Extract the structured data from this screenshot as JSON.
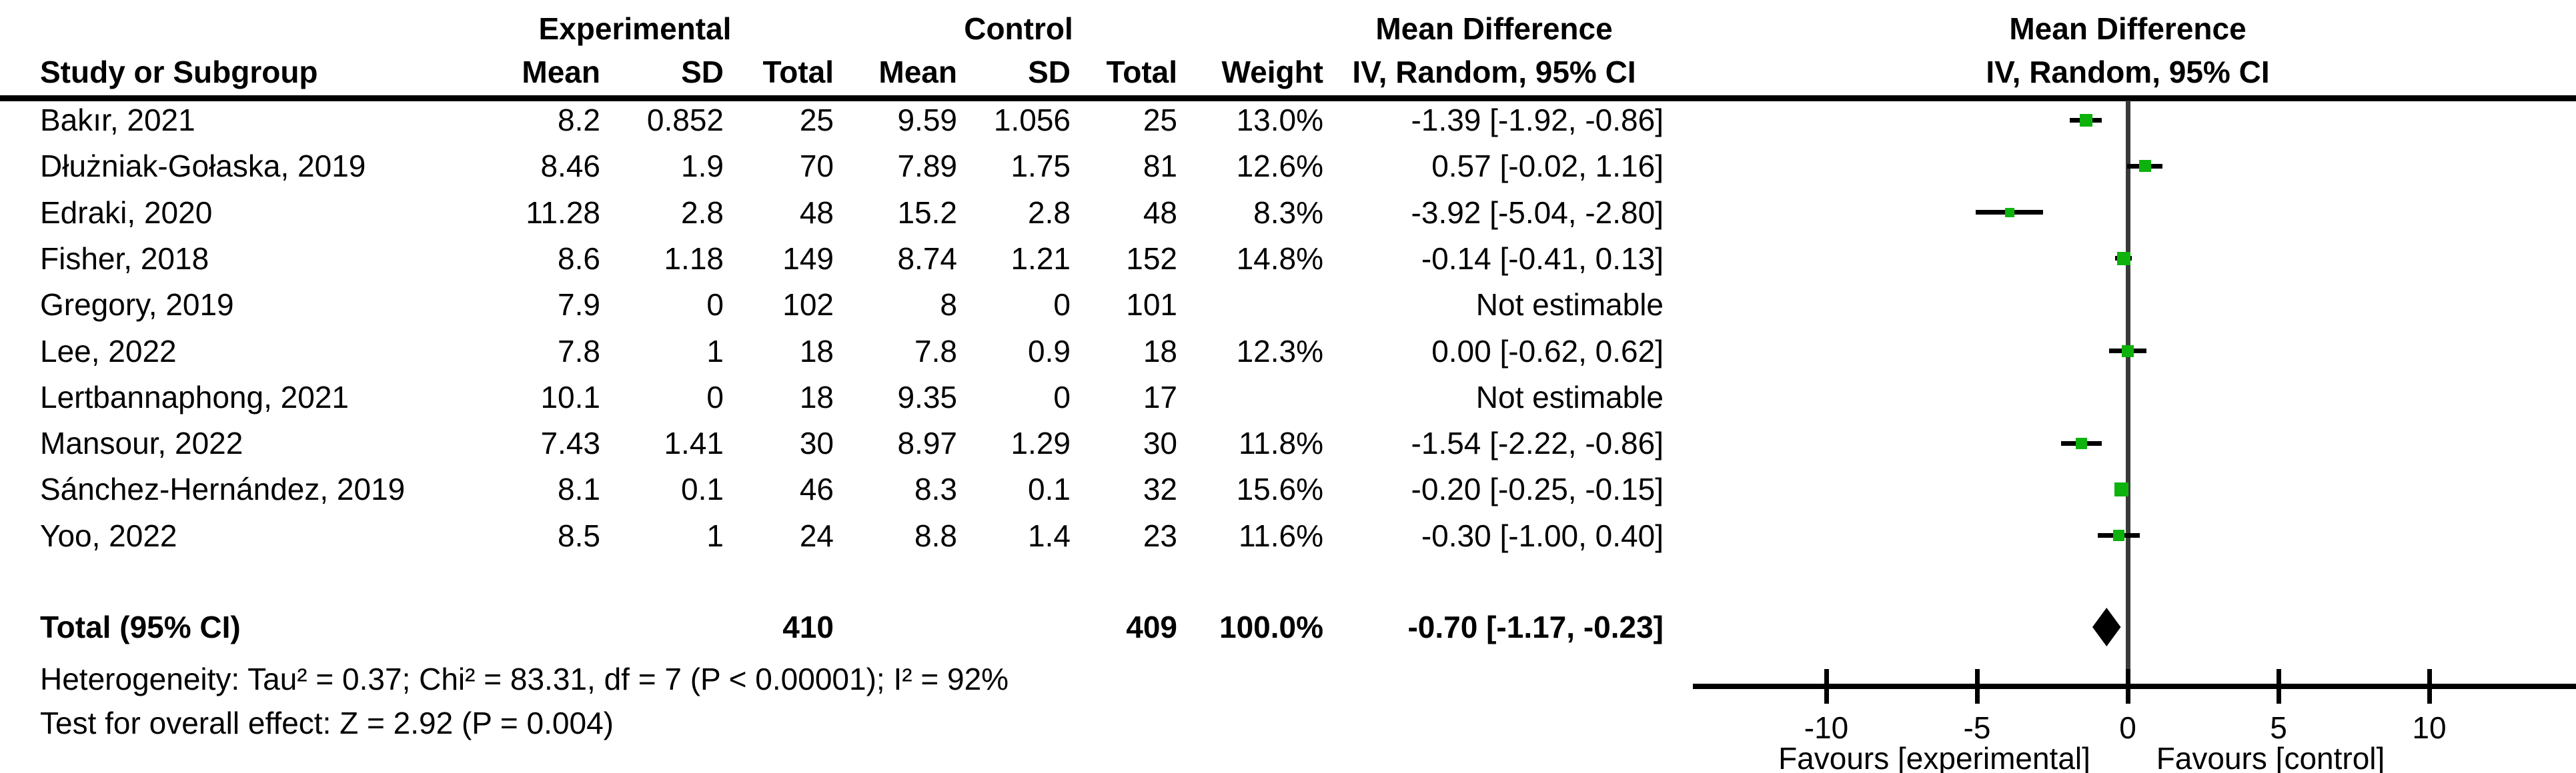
{
  "table": {
    "header": {
      "group_experimental": "Experimental",
      "group_control": "Control",
      "group_md_left": "Mean Difference",
      "group_md_right": "Mean Difference",
      "col_study": "Study or Subgroup",
      "col_mean_exp": "Mean",
      "col_sd_exp": "SD",
      "col_total_exp": "Total",
      "col_mean_ctrl": "Mean",
      "col_sd_ctrl": "SD",
      "col_total_ctrl": "Total",
      "col_weight": "Weight",
      "col_ci_left": "IV, Random, 95% CI",
      "col_ci_right": "IV, Random, 95% CI"
    },
    "rows": [
      {
        "name": "Bakır, 2021",
        "mean_e": "8.2",
        "sd_e": "0.852",
        "total_e": "25",
        "mean_c": "9.59",
        "sd_c": "1.056",
        "total_c": "25",
        "weight": "13.0%",
        "ci": "-1.39 [-1.92, -0.86]"
      },
      {
        "name": "Dłużniak-Gołaska, 2019",
        "mean_e": "8.46",
        "sd_e": "1.9",
        "total_e": "70",
        "mean_c": "7.89",
        "sd_c": "1.75",
        "total_c": "81",
        "weight": "12.6%",
        "ci": "0.57 [-0.02, 1.16]"
      },
      {
        "name": "Edraki, 2020",
        "mean_e": "11.28",
        "sd_e": "2.8",
        "total_e": "48",
        "mean_c": "15.2",
        "sd_c": "2.8",
        "total_c": "48",
        "weight": "8.3%",
        "ci": "-3.92 [-5.04, -2.80]"
      },
      {
        "name": "Fisher, 2018",
        "mean_e": "8.6",
        "sd_e": "1.18",
        "total_e": "149",
        "mean_c": "8.74",
        "sd_c": "1.21",
        "total_c": "152",
        "weight": "14.8%",
        "ci": "-0.14 [-0.41, 0.13]"
      },
      {
        "name": "Gregory, 2019",
        "mean_e": "7.9",
        "sd_e": "0",
        "total_e": "102",
        "mean_c": "8",
        "sd_c": "0",
        "total_c": "101",
        "weight": "",
        "ci": "Not estimable"
      },
      {
        "name": "Lee, 2022",
        "mean_e": "7.8",
        "sd_e": "1",
        "total_e": "18",
        "mean_c": "7.8",
        "sd_c": "0.9",
        "total_c": "18",
        "weight": "12.3%",
        "ci": "0.00 [-0.62, 0.62]"
      },
      {
        "name": "Lertbannaphong, 2021",
        "mean_e": "10.1",
        "sd_e": "0",
        "total_e": "18",
        "mean_c": "9.35",
        "sd_c": "0",
        "total_c": "17",
        "weight": "",
        "ci": "Not estimable"
      },
      {
        "name": "Mansour, 2022",
        "mean_e": "7.43",
        "sd_e": "1.41",
        "total_e": "30",
        "mean_c": "8.97",
        "sd_c": "1.29",
        "total_c": "30",
        "weight": "11.8%",
        "ci": "-1.54 [-2.22, -0.86]"
      },
      {
        "name": "Sánchez-Hernández, 2019",
        "mean_e": "8.1",
        "sd_e": "0.1",
        "total_e": "46",
        "mean_c": "8.3",
        "sd_c": "0.1",
        "total_c": "32",
        "weight": "15.6%",
        "ci": "-0.20 [-0.25, -0.15]"
      },
      {
        "name": "Yoo, 2022",
        "mean_e": "8.5",
        "sd_e": "1",
        "total_e": "24",
        "mean_c": "8.8",
        "sd_c": "1.4",
        "total_c": "23",
        "weight": "11.6%",
        "ci": "-0.30 [-1.00, 0.40]"
      }
    ],
    "total_row": {
      "label": "Total (95% CI)",
      "total_e": "410",
      "total_c": "409",
      "weight": "100.0%",
      "ci": "-0.70 [-1.17, -0.23]"
    },
    "footer": {
      "heterogeneity": "Heterogeneity: Tau² = 0.37; Chi² = 83.31, df = 7 (P < 0.00001); I² = 92%",
      "overall_effect": "Test for overall effect: Z = 2.92 (P = 0.004)"
    }
  },
  "chart_data": {
    "type": "forest",
    "effect_measure": "Mean Difference, IV, Random, 95% CI",
    "x_ticks": [
      -10,
      -5,
      0,
      5,
      10
    ],
    "x_tick_labels": [
      "-10",
      "-5",
      "0",
      "5",
      "10"
    ],
    "xlim_drawn": [
      -14.4,
      14.9
    ],
    "favours_left": "Favours [experimental]",
    "favours_right": "Favours [control]",
    "marker_color": "#0DB20D",
    "studies": [
      {
        "name": "Bakır, 2021",
        "md": -1.39,
        "lo": -1.92,
        "hi": -0.86,
        "weight_pct": 13.0,
        "estimable": true
      },
      {
        "name": "Dłużniak-Gołaska, 2019",
        "md": 0.57,
        "lo": -0.02,
        "hi": 1.16,
        "weight_pct": 12.6,
        "estimable": true
      },
      {
        "name": "Edraki, 2020",
        "md": -3.92,
        "lo": -5.04,
        "hi": -2.8,
        "weight_pct": 8.3,
        "estimable": true
      },
      {
        "name": "Fisher, 2018",
        "md": -0.14,
        "lo": -0.41,
        "hi": 0.13,
        "weight_pct": 14.8,
        "estimable": true
      },
      {
        "name": "Gregory, 2019",
        "md": null,
        "lo": null,
        "hi": null,
        "weight_pct": null,
        "estimable": false
      },
      {
        "name": "Lee, 2022",
        "md": 0.0,
        "lo": -0.62,
        "hi": 0.62,
        "weight_pct": 12.3,
        "estimable": true
      },
      {
        "name": "Lertbannaphong, 2021",
        "md": null,
        "lo": null,
        "hi": null,
        "weight_pct": null,
        "estimable": false
      },
      {
        "name": "Mansour, 2022",
        "md": -1.54,
        "lo": -2.22,
        "hi": -0.86,
        "weight_pct": 11.8,
        "estimable": true
      },
      {
        "name": "Sánchez-Hernández, 2019",
        "md": -0.2,
        "lo": -0.25,
        "hi": -0.15,
        "weight_pct": 15.6,
        "estimable": true
      },
      {
        "name": "Yoo, 2022",
        "md": -0.3,
        "lo": -1.0,
        "hi": 0.4,
        "weight_pct": 11.6,
        "estimable": true
      }
    ],
    "total": {
      "md": -0.7,
      "lo": -1.17,
      "hi": -0.23
    }
  }
}
